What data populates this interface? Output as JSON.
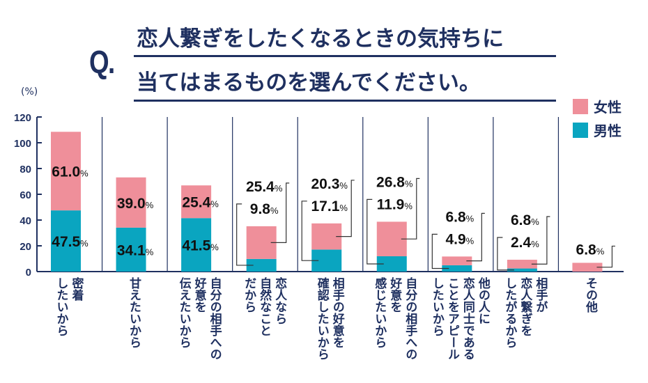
{
  "header": {
    "q_mark": "Q.",
    "title_line1": "恋人繋ぎをしたくなるときの気持ちに",
    "title_line2": "当てはまるものを選んでください。"
  },
  "chart_data": {
    "type": "bar",
    "stacked": true,
    "ylabel": "(%)",
    "ylim": [
      0,
      120
    ],
    "yticks": [
      0,
      20,
      40,
      60,
      80,
      100,
      120
    ],
    "legend_position": "top-right",
    "categories": [
      [
        "密着",
        "したいから"
      ],
      [
        "甘えたいから"
      ],
      [
        "自分の相手への",
        "好意を",
        "伝えたいから"
      ],
      [
        "恋人なら",
        "自然なこと",
        "だから"
      ],
      [
        "相手の好意を",
        "確認したいから"
      ],
      [
        "自分の相手への",
        "好意を",
        "感じたいから"
      ],
      [
        "他の人に",
        "恋人同士である",
        "ことをアピール",
        "したいから"
      ],
      [
        "相手が",
        "恋人繋ぎを",
        "したがるから"
      ],
      [
        "その他"
      ]
    ],
    "series": [
      {
        "name": "男性",
        "color": "#0aa5c0",
        "values": [
          47.5,
          34.1,
          41.5,
          9.8,
          17.1,
          11.9,
          4.9,
          2.4,
          0
        ]
      },
      {
        "name": "女性",
        "color": "#ef8f9a",
        "values": [
          61.0,
          39.0,
          25.4,
          25.4,
          20.3,
          26.8,
          6.8,
          6.8,
          6.8
        ]
      }
    ],
    "value_labels": {
      "male": [
        "47.5",
        "34.1",
        "41.5",
        "9.8",
        "17.1",
        "11.9",
        "4.9",
        "2.4",
        ""
      ],
      "female": [
        "61.0",
        "39.0",
        "25.4",
        "25.4",
        "20.3",
        "26.8",
        "6.8",
        "6.8",
        "6.8"
      ],
      "unit": "%"
    }
  }
}
